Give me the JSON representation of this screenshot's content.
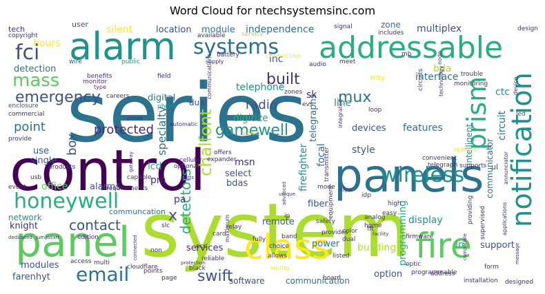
{
  "title": "Word Cloud for ntechsystemsinc.com",
  "palette": {
    "deep_purple": "#440154",
    "purple": "#472d7b",
    "indigo": "#3b528b",
    "blue": "#2c728e",
    "teal": "#21918c",
    "green_teal": "#28ae80",
    "green": "#5ec962",
    "lime": "#addc30",
    "yellow": "#fde725"
  },
  "words": [
    {
      "text": "series",
      "color": "#2c728e"
    },
    {
      "text": "control",
      "color": "#440154"
    },
    {
      "text": "system",
      "color": "#addc30"
    },
    {
      "text": "panels",
      "color": "#2c728e"
    },
    {
      "text": "alarm",
      "color": "#21918c"
    },
    {
      "text": "addressable",
      "color": "#28ae80"
    },
    {
      "text": "panel",
      "color": "#5ec962"
    },
    {
      "text": "class",
      "color": "#fde725"
    },
    {
      "text": "fire",
      "color": "#5ec962"
    },
    {
      "text": "notification",
      "color": "#21918c"
    },
    {
      "text": "prism",
      "color": "#28ae80"
    },
    {
      "text": "honeywell",
      "color": "#28ae80"
    },
    {
      "text": "wireless",
      "color": "#21918c"
    },
    {
      "text": "systems",
      "color": "#2c728e"
    },
    {
      "text": "fci",
      "color": "#3b528b"
    },
    {
      "text": "mass",
      "color": "#5ec962"
    },
    {
      "text": "emergency",
      "color": "#3b528b"
    },
    {
      "text": "email",
      "color": "#2c728e"
    },
    {
      "text": "swift",
      "color": "#3b528b"
    },
    {
      "text": "gamewell",
      "color": "#21918c"
    },
    {
      "text": "protected",
      "color": "#472d7b"
    },
    {
      "text": "built",
      "color": "#472d7b"
    },
    {
      "text": "contact",
      "color": "#3b528b"
    },
    {
      "text": "mux",
      "color": "#2c728e"
    },
    {
      "text": "chalfont",
      "color": "#addc30"
    },
    {
      "text": "detectors",
      "color": "#28ae80"
    },
    {
      "text": "box",
      "color": "#3b528b"
    },
    {
      "text": "point",
      "color": "#2c728e"
    },
    {
      "text": "specialty",
      "color": "#2c728e"
    },
    {
      "text": "radio",
      "color": "#3b528b"
    },
    {
      "text": "telephone",
      "color": "#21918c"
    },
    {
      "text": "digitize",
      "color": "#28ae80"
    },
    {
      "text": "x",
      "color": "#3b528b"
    },
    {
      "text": "location",
      "color": "#3b528b"
    },
    {
      "text": "module",
      "color": "#2c728e"
    },
    {
      "text": "independence",
      "color": "#2c728e"
    },
    {
      "text": "multiplex",
      "color": "#3b528b"
    },
    {
      "text": "zone",
      "color": "#2c728e"
    },
    {
      "text": "bda",
      "color": "#addc30"
    },
    {
      "text": "interface",
      "color": "#2c728e"
    },
    {
      "text": "ctc",
      "color": "#21918c"
    },
    {
      "text": "circuit",
      "color": "#2c728e"
    },
    {
      "text": "communicator",
      "color": "#2c728e"
    },
    {
      "text": "intelligent",
      "color": "#21918c"
    },
    {
      "text": "features",
      "color": "#2c728e"
    },
    {
      "text": "devices",
      "color": "#3b528b"
    },
    {
      "text": "telegraphs",
      "color": "#2c728e"
    },
    {
      "text": "focal",
      "color": "#2c728e"
    },
    {
      "text": "firefighter",
      "color": "#21918c"
    },
    {
      "text": "line",
      "color": "#21918c"
    },
    {
      "text": "sk",
      "color": "#472d7b"
    },
    {
      "text": "style",
      "color": "#3b528b"
    },
    {
      "text": "msn",
      "color": "#472d7b"
    },
    {
      "text": "select",
      "color": "#3b528b"
    },
    {
      "text": "bdas",
      "color": "#3b528b"
    },
    {
      "text": "lcd",
      "color": "#28ae80"
    },
    {
      "text": "pm",
      "color": "#472d7b"
    },
    {
      "text": "pa",
      "color": "#472d7b"
    },
    {
      "text": "office",
      "color": "#5ec962"
    },
    {
      "text": "alarms",
      "color": "#3b528b"
    },
    {
      "text": "communcation",
      "color": "#2c728e"
    },
    {
      "text": "network",
      "color": "#21918c"
    },
    {
      "text": "knight",
      "color": "#472d7b"
    },
    {
      "text": "fiber",
      "color": "#3b528b"
    },
    {
      "text": "remote",
      "color": "#3b528b"
    },
    {
      "text": "display",
      "color": "#21918c"
    },
    {
      "text": "programming",
      "color": "#28ae80"
    },
    {
      "text": "power",
      "color": "#2c728e"
    },
    {
      "text": "building",
      "color": "#addc30"
    },
    {
      "text": "ln",
      "color": "#28ae80"
    },
    {
      "text": "support",
      "color": "#3b528b"
    },
    {
      "text": "services",
      "color": "#472d7b"
    },
    {
      "text": "modules",
      "color": "#3b528b"
    },
    {
      "text": "farenhyt",
      "color": "#3b528b"
    },
    {
      "text": "software",
      "color": "#3b528b"
    },
    {
      "text": "communication",
      "color": "#2c728e"
    },
    {
      "text": "option",
      "color": "#3b528b"
    },
    {
      "text": "digital",
      "color": "#2c728e"
    },
    {
      "text": "dual",
      "color": "#3b528b"
    },
    {
      "text": "hours",
      "color": "#fde725"
    },
    {
      "text": "silent",
      "color": "#fde725"
    },
    {
      "text": "detection",
      "color": "#2c728e"
    },
    {
      "text": "inc",
      "color": "#3b528b"
    },
    {
      "text": "use",
      "color": "#3b528b"
    },
    {
      "text": "single",
      "color": "#3b528b"
    },
    {
      "text": "tech",
      "color": "#472d7b"
    },
    {
      "text": "user",
      "color": "#3b528b"
    },
    {
      "text": "copyright",
      "color": "#472d7b"
    },
    {
      "text": "available",
      "color": "#472d7b"
    },
    {
      "text": "service",
      "color": "#addc30"
    },
    {
      "text": "signal",
      "color": "#472d7b"
    },
    {
      "text": "includes",
      "color": "#472d7b"
    },
    {
      "text": "mb",
      "color": "#472d7b"
    },
    {
      "text": "design",
      "color": "#472d7b"
    },
    {
      "text": "battery",
      "color": "#472d7b"
    },
    {
      "text": "connection",
      "color": "#fde725"
    },
    {
      "text": "wire",
      "color": "#3b528b"
    },
    {
      "text": "public",
      "color": "#21918c"
    },
    {
      "text": "supply",
      "color": "#472d7b"
    },
    {
      "text": "audio",
      "color": "#472d7b"
    },
    {
      "text": "meet",
      "color": "#472d7b"
    },
    {
      "text": "way",
      "color": "#fde725"
    },
    {
      "text": "benefits",
      "color": "#472d7b"
    },
    {
      "text": "monitor",
      "color": "#472d7b"
    },
    {
      "text": "field",
      "color": "#472d7b"
    },
    {
      "text": "type",
      "color": "#472d7b"
    },
    {
      "text": "enclosure",
      "color": "#3b528b"
    },
    {
      "text": "commercial",
      "color": "#472d7b"
    },
    {
      "text": "careers",
      "color": "#472d7b"
    },
    {
      "text": "provide",
      "color": "#472d7b"
    },
    {
      "text": "phone",
      "color": "#21918c"
    },
    {
      "text": "automatic",
      "color": "#472d7b"
    },
    {
      "text": "zones",
      "color": "#472d7b"
    },
    {
      "text": "evs",
      "color": "#472d7b"
    },
    {
      "text": "voice",
      "color": "#addc30"
    },
    {
      "text": "sensor",
      "color": "#472d7b"
    },
    {
      "text": "communications",
      "color": "#472d7b"
    },
    {
      "text": "trouble",
      "color": "#472d7b"
    },
    {
      "text": "monitoring",
      "color": "#472d7b"
    },
    {
      "text": "led",
      "color": "#3b528b"
    },
    {
      "text": "device",
      "color": "#472d7b"
    },
    {
      "text": "technology",
      "color": "#472d7b"
    },
    {
      "text": "circuits",
      "color": "#472d7b"
    },
    {
      "text": "loop",
      "color": "#472d7b"
    },
    {
      "text": "integrated",
      "color": "#472d7b"
    },
    {
      "text": "node",
      "color": "#472d7b"
    },
    {
      "text": "options",
      "color": "#fde725"
    },
    {
      "text": "convenient",
      "color": "#472d7b"
    },
    {
      "text": "telegraph",
      "color": "#472d7b"
    },
    {
      "text": "supports",
      "color": "#472d7b"
    },
    {
      "text": "ul",
      "color": "#3b528b"
    },
    {
      "text": "annunciator",
      "color": "#472d7b"
    },
    {
      "text": "cellular",
      "color": "#472d7b"
    },
    {
      "text": "offers",
      "color": "#472d7b"
    },
    {
      "text": "expander",
      "color": "#472d7b"
    },
    {
      "text": "optional",
      "color": "#472d7b"
    },
    {
      "text": "capable",
      "color": "#472d7b"
    },
    {
      "text": "requirements",
      "color": "#472d7b"
    },
    {
      "text": "products",
      "color": "#472d7b"
    },
    {
      "text": "gateway",
      "color": "#472d7b"
    },
    {
      "text": "watts",
      "color": "#472d7b"
    },
    {
      "text": "usb",
      "color": "#472d7b"
    },
    {
      "text": "event",
      "color": "#472d7b"
    },
    {
      "text": "dedicated",
      "color": "#472d7b"
    },
    {
      "text": "jumpstart",
      "color": "#472d7b"
    },
    {
      "text": "edition",
      "color": "#472d7b"
    },
    {
      "text": "maximum",
      "color": "#472d7b"
    },
    {
      "text": "relay",
      "color": "#472d7b"
    },
    {
      "text": "transmitter",
      "color": "#472d7b"
    },
    {
      "text": "nfpa",
      "color": "#472d7b"
    },
    {
      "text": "idp",
      "color": "#472d7b"
    },
    {
      "text": "high",
      "color": "#472d7b"
    },
    {
      "text": "easy",
      "color": "#472d7b"
    },
    {
      "text": "analog",
      "color": "#472d7b"
    },
    {
      "text": "fft",
      "color": "#472d7b"
    },
    {
      "text": "facility",
      "color": "#472d7b"
    },
    {
      "text": "mode",
      "color": "#472d7b"
    },
    {
      "text": "equipment",
      "color": "#472d7b"
    },
    {
      "text": "unique",
      "color": "#472d7b"
    },
    {
      "text": "advanced",
      "color": "#472d7b"
    },
    {
      "text": "ip",
      "color": "#472d7b"
    },
    {
      "text": "home",
      "color": "#472d7b"
    },
    {
      "text": "provides",
      "color": "#472d7b"
    },
    {
      "text": "safety",
      "color": "#472d7b"
    },
    {
      "text": "color",
      "color": "#472d7b"
    },
    {
      "text": "dual",
      "color": "#472d7b"
    },
    {
      "text": "firmware",
      "color": "#472d7b"
    },
    {
      "text": "card",
      "color": "#472d7b"
    },
    {
      "text": "band",
      "color": "#472d7b"
    },
    {
      "text": "fully",
      "color": "#472d7b"
    },
    {
      "text": "choice",
      "color": "#472d7b"
    },
    {
      "text": "allows",
      "color": "#472d7b"
    },
    {
      "text": "listed",
      "color": "#472d7b"
    },
    {
      "text": "wiring",
      "color": "#fde725"
    },
    {
      "text": "optic",
      "color": "#472d7b"
    },
    {
      "text": "address",
      "color": "#472d7b"
    },
    {
      "text": "providing",
      "color": "#472d7b"
    },
    {
      "text": "supervised",
      "color": "#472d7b"
    },
    {
      "text": "applications",
      "color": "#472d7b"
    },
    {
      "text": "message",
      "color": "#472d7b"
    },
    {
      "text": "form",
      "color": "#472d7b"
    },
    {
      "text": "compatible",
      "color": "#472d7b"
    },
    {
      "text": "installation",
      "color": "#472d7b"
    },
    {
      "text": "designed",
      "color": "#472d7b"
    },
    {
      "text": "programmable",
      "color": "#472d7b"
    },
    {
      "text": "board",
      "color": "#472d7b"
    },
    {
      "text": "reliable",
      "color": "#472d7b"
    },
    {
      "text": "ecs",
      "color": "#472d7b"
    },
    {
      "text": "black",
      "color": "#472d7b"
    },
    {
      "text": "points",
      "color": "#472d7b"
    },
    {
      "text": "page",
      "color": "#472d7b"
    },
    {
      "text": "protection",
      "color": "#472d7b"
    },
    {
      "text": "cloudflare",
      "color": "#472d7b"
    },
    {
      "text": "connected",
      "color": "#472d7b"
    },
    {
      "text": "access",
      "color": "#472d7b"
    },
    {
      "text": "multi",
      "color": "#472d7b"
    },
    {
      "text": "slc",
      "color": "#472d7b"
    },
    {
      "text": "non",
      "color": "#472d7b"
    }
  ]
}
